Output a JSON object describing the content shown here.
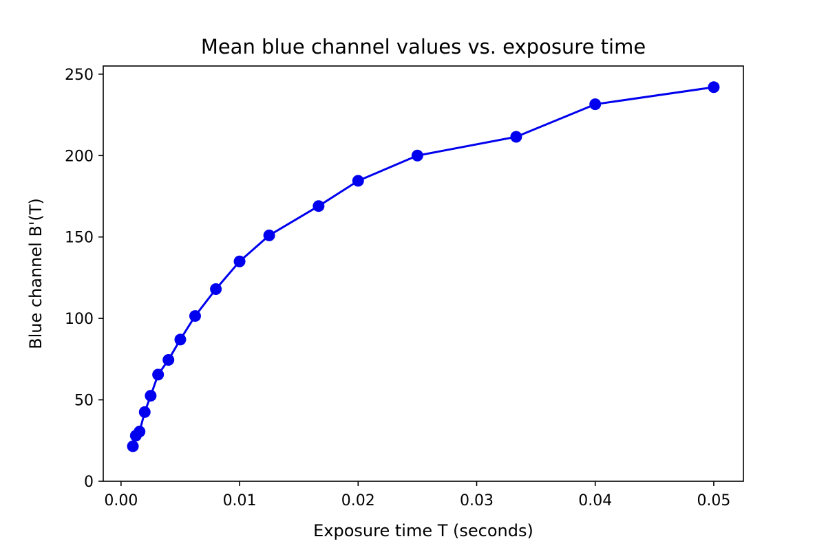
{
  "chart_data": {
    "type": "line",
    "title": "Mean blue channel values vs. exposure time",
    "xlabel": "Exposure time T (seconds)",
    "ylabel": "Blue channel B'(T)",
    "xlim": [
      -0.0015,
      0.0525
    ],
    "ylim": [
      0,
      255
    ],
    "xticks": [
      0.0,
      0.01,
      0.02,
      0.03,
      0.04,
      0.05
    ],
    "xtick_labels": [
      "0.00",
      "0.01",
      "0.02",
      "0.03",
      "0.04",
      "0.05"
    ],
    "yticks": [
      0,
      50,
      100,
      150,
      200,
      250
    ],
    "ytick_labels": [
      "0",
      "50",
      "100",
      "150",
      "200",
      "250"
    ],
    "grid": false,
    "series": [
      {
        "color": "#0000ee",
        "marker": "circle",
        "x": [
          0.001,
          0.00125,
          0.0015625,
          0.002,
          0.0025,
          0.003125,
          0.004,
          0.005,
          0.00625,
          0.008,
          0.01,
          0.0125,
          0.0166667,
          0.02,
          0.025,
          0.0333333,
          0.04,
          0.05
        ],
        "y": [
          21.5,
          28,
          30.5,
          42.5,
          52.5,
          65.5,
          74.5,
          87,
          101.5,
          118,
          135,
          151,
          169,
          184.5,
          200,
          211.5,
          231.5,
          242
        ]
      }
    ]
  }
}
